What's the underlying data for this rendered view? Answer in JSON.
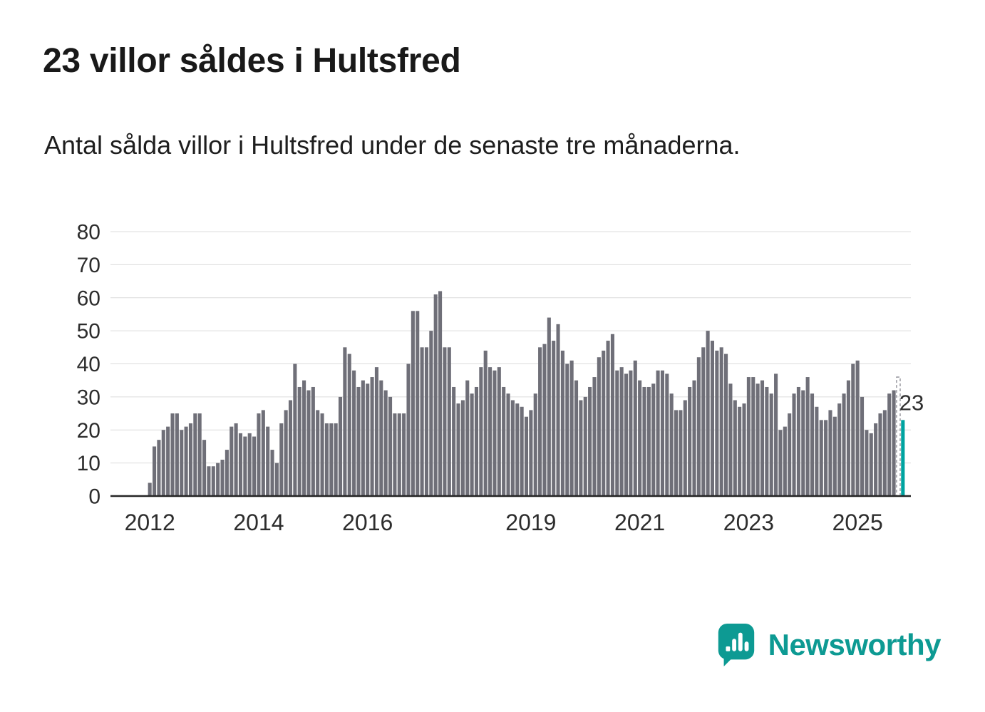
{
  "header": {
    "title": "23 villor såldes i Hultsfred",
    "subtitle": "Antal sålda villor i Hultsfred under de senaste tre månaderna."
  },
  "chart_data": {
    "type": "bar",
    "title": "",
    "xlabel": "",
    "ylabel": "",
    "frequency": "monthly",
    "start_year": 2012,
    "values": [
      4,
      15,
      17,
      20,
      21,
      25,
      25,
      20,
      21,
      22,
      25,
      25,
      17,
      9,
      9,
      10,
      11,
      14,
      21,
      22,
      19,
      18,
      19,
      18,
      25,
      26,
      21,
      14,
      10,
      22,
      26,
      29,
      40,
      33,
      35,
      32,
      33,
      26,
      25,
      22,
      22,
      22,
      30,
      45,
      43,
      38,
      33,
      35,
      34,
      36,
      39,
      35,
      32,
      30,
      25,
      25,
      25,
      40,
      56,
      56,
      45,
      45,
      50,
      61,
      62,
      45,
      45,
      33,
      28,
      29,
      35,
      31,
      33,
      39,
      44,
      39,
      38,
      39,
      33,
      31,
      29,
      28,
      27,
      24,
      26,
      31,
      45,
      46,
      54,
      47,
      52,
      44,
      40,
      41,
      35,
      29,
      30,
      33,
      36,
      42,
      44,
      47,
      49,
      38,
      39,
      37,
      38,
      41,
      35,
      33,
      33,
      34,
      38,
      38,
      37,
      31,
      26,
      26,
      29,
      33,
      35,
      42,
      45,
      50,
      47,
      44,
      45,
      43,
      34,
      29,
      27,
      28,
      36,
      36,
      34,
      35,
      33,
      31,
      37,
      20,
      21,
      25,
      31,
      33,
      32,
      36,
      31,
      27,
      23,
      23,
      26,
      24,
      28,
      31,
      35,
      40,
      41,
      30,
      20,
      19,
      22,
      25,
      26,
      31,
      32,
      36,
      23
    ],
    "last_value": 23,
    "last_value_label": "23",
    "ylim": [
      0,
      80
    ],
    "yticks": [
      0,
      10,
      20,
      30,
      40,
      50,
      60,
      70,
      80
    ],
    "xticks": [
      "2012",
      "2014",
      "2016",
      "2019",
      "2021",
      "2023",
      "2025"
    ],
    "bar_color": "#6f6f78",
    "highlight_color": "#00a3a0",
    "grid": true,
    "legend": "none"
  },
  "branding": {
    "logo_text": "Newsworthy",
    "logo_icon": "bar-chart-speech-bubble-icon",
    "color": "#0d9a93"
  }
}
